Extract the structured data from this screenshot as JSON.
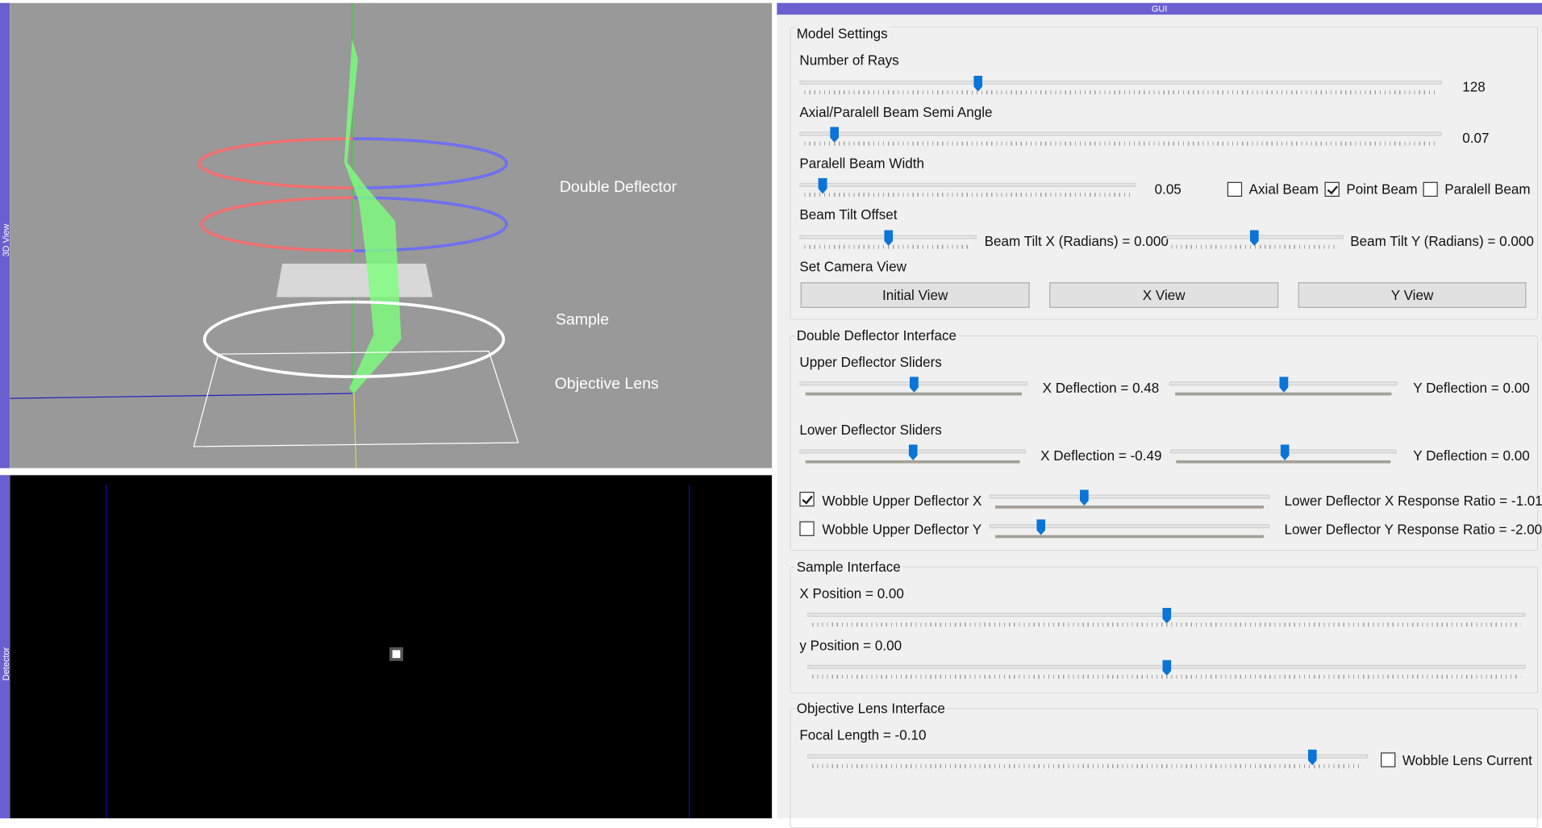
{
  "view_3d": {
    "title": "3D View",
    "labels": [
      "Double Deflector",
      "Sample",
      "Objective Lens"
    ]
  },
  "detector": {
    "title": "Detector"
  },
  "gui": {
    "title": "GUI",
    "model_settings": {
      "title": "Model Settings",
      "rays_label": "Number of Rays",
      "rays_value": "128",
      "semi_angle_label": "Axial/Paralell Beam Semi Angle",
      "semi_angle_value": "0.07",
      "width_label": "Paralell Beam Width",
      "width_value": "0.05",
      "beam_modes": [
        "Axial Beam",
        "Point Beam",
        "Paralell Beam"
      ],
      "tilt_label": "Beam Tilt Offset",
      "tilt_x": "Beam Tilt X (Radians) = 0.000",
      "tilt_y": "Beam Tilt Y (Radians) = 0.000",
      "camera_label": "Set Camera View",
      "camera_buttons": [
        "Initial View",
        "X View",
        "Y View"
      ]
    },
    "double_deflector": {
      "title": "Double Deflector Interface",
      "upper_label": "Upper Deflector Sliders",
      "upper_x": "X Deflection = 0.48",
      "upper_y": "Y Deflection = 0.00",
      "lower_label": "Lower Deflector Sliders",
      "lower_x": "X Deflection = -0.49",
      "lower_y": "Y Deflection = 0.00",
      "wobble_x": "Wobble Upper Deflector X",
      "wobble_y": "Wobble Upper Deflector Y",
      "ratio_x": "Lower Deflector X Response Ratio = -1.01",
      "ratio_y": "Lower Deflector Y Response Ratio = -2.00"
    },
    "sample": {
      "title": "Sample Interface",
      "x": "X Position = 0.00",
      "y": "y Position = 0.00"
    },
    "objective": {
      "title": "Objective Lens Interface",
      "focal": "Focal Length = -0.10",
      "wobble": "Wobble Lens Current"
    }
  }
}
